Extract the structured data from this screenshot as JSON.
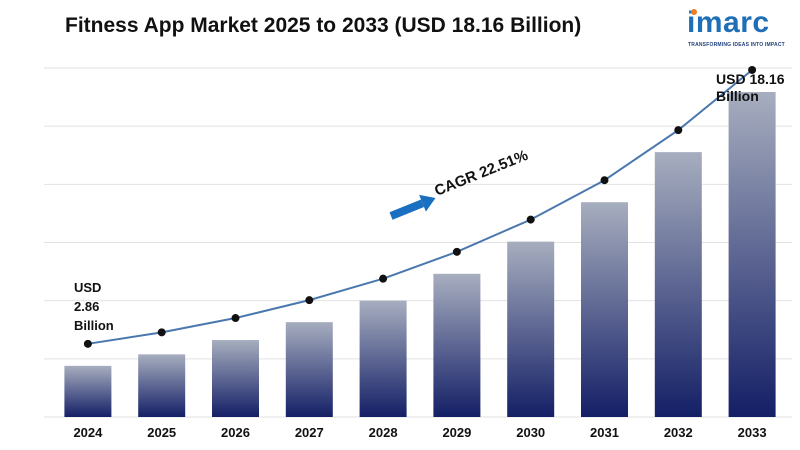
{
  "title": "Fitness App Market 2025 to 2033 (USD 18.16 Billion)",
  "logo": {
    "word": "imarc",
    "tagline": "TRANSFORMING IDEAS INTO IMPACT"
  },
  "chart_data": {
    "type": "bar",
    "categories": [
      "2024",
      "2025",
      "2026",
      "2027",
      "2028",
      "2029",
      "2030",
      "2031",
      "2032",
      "2033"
    ],
    "values": [
      2.86,
      3.5,
      4.3,
      5.3,
      6.5,
      8.0,
      9.8,
      12.0,
      14.8,
      18.16
    ],
    "line_values": [
      2.86,
      3.5,
      4.3,
      5.3,
      6.5,
      8.0,
      9.8,
      12.0,
      14.8,
      18.16
    ],
    "ylim": [
      0,
      19.5
    ],
    "grid": true,
    "annotations": {
      "start_label": [
        "USD",
        "2.86",
        "Billion"
      ],
      "end_label": [
        "USD 18.16",
        "Billion"
      ],
      "cagr": "CAGR 22.51%"
    },
    "colors": {
      "bar_top": "#a7aebf",
      "bar_bottom": "#141f66",
      "line": "#4a78ae",
      "marker": "#111111",
      "arrow": "#1a6fc0",
      "grid": "#e2e2e2"
    }
  }
}
